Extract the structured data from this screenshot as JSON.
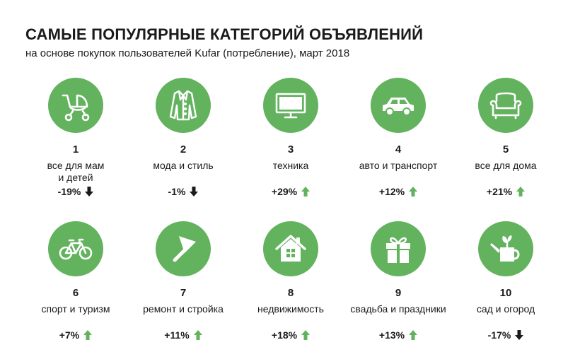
{
  "header": {
    "title": "САМЫЕ ПОПУЛЯРНЫЕ КАТЕГОРИЙ ОБЪЯВЛЕНИЙ",
    "subtitle": "на основе покупок пользователей Kufar (потребление),  март 2018"
  },
  "colors": {
    "accent": "#62b25e",
    "up": "#62b25e",
    "down": "#1a1a1a"
  },
  "categories": [
    {
      "rank": "1",
      "label": "все для мам и детей",
      "change": "-19%",
      "direction": "down",
      "icon": "stroller-icon"
    },
    {
      "rank": "2",
      "label": "мода и стиль",
      "change": "-1%",
      "direction": "down",
      "icon": "coat-icon"
    },
    {
      "rank": "3",
      "label": "техника",
      "change": "+29%",
      "direction": "up",
      "icon": "monitor-icon"
    },
    {
      "rank": "4",
      "label": "авто и транспорт",
      "change": "+12%",
      "direction": "up",
      "icon": "car-icon"
    },
    {
      "rank": "5",
      "label": "все для дома",
      "change": "+21%",
      "direction": "up",
      "icon": "armchair-icon"
    },
    {
      "rank": "6",
      "label": "спорт и туризм",
      "change": "+7%",
      "direction": "up",
      "icon": "bicycle-icon"
    },
    {
      "rank": "7",
      "label": "ремонт и стройка",
      "change": "+11%",
      "direction": "up",
      "icon": "trowel-icon"
    },
    {
      "rank": "8",
      "label": "недвижимость",
      "change": "+18%",
      "direction": "up",
      "icon": "house-icon"
    },
    {
      "rank": "9",
      "label": "свадьба и праздники",
      "change": "+13%",
      "direction": "up",
      "icon": "gift-icon"
    },
    {
      "rank": "10",
      "label": "сад и огород",
      "change": "-17%",
      "direction": "down",
      "icon": "watering-can-icon"
    }
  ]
}
